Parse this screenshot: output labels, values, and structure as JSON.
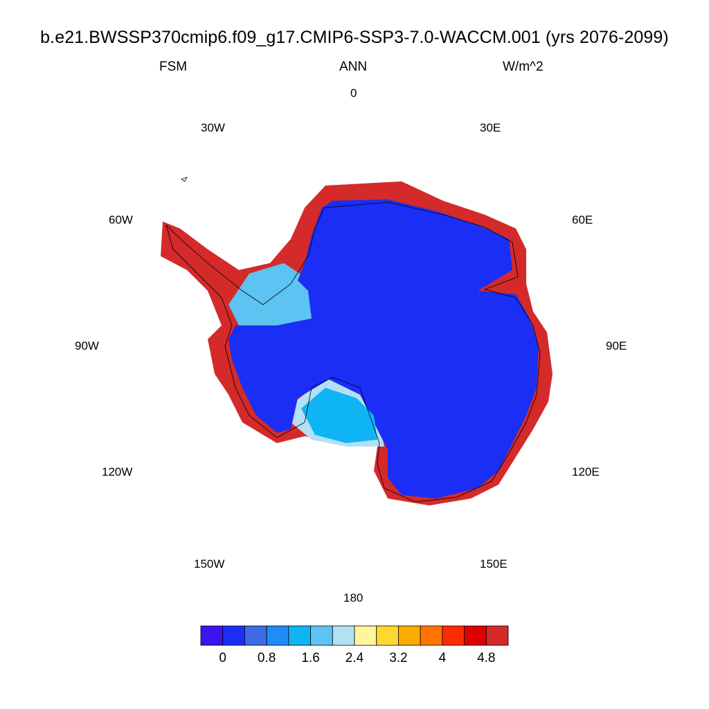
{
  "title": "b.e21.BWSSP370cmip6.f09_g17.CMIP6-SSP3-7.0-WACCM.001 (yrs 2076-2099)",
  "variable": "FSM",
  "season": "ANN",
  "units": "W/m^2",
  "longitude_labels": {
    "lon_0": "0",
    "lon_30e": "30E",
    "lon_60e": "60E",
    "lon_90e": "90E",
    "lon_120e": "120E",
    "lon_150e": "150E",
    "lon_180": "180",
    "lon_150w": "150W",
    "lon_120w": "120W",
    "lon_90w": "90W",
    "lon_60w": "60W",
    "lon_30w": "30W"
  },
  "colorbar": {
    "colors": [
      "#3c14f0",
      "#1a2ef5",
      "#3d6be8",
      "#1f8cf7",
      "#0fb4f5",
      "#5cc3f2",
      "#b3e0f2",
      "#fff59e",
      "#fdd82e",
      "#fcab00",
      "#fd7400",
      "#fc2b00",
      "#e00000",
      "#d42a2a"
    ],
    "tick_labels": [
      "0",
      "0.8",
      "1.6",
      "2.4",
      "3.2",
      "4",
      "4.8"
    ]
  },
  "map_colors": {
    "ice_interior": "#1a2ef5",
    "coast_high": "#d42a2a",
    "shelf_light": "#5cc3f2",
    "shelf_pale": "#b3e0f2",
    "shelf_mid": "#0fb4f5",
    "coastline": "#000000"
  }
}
